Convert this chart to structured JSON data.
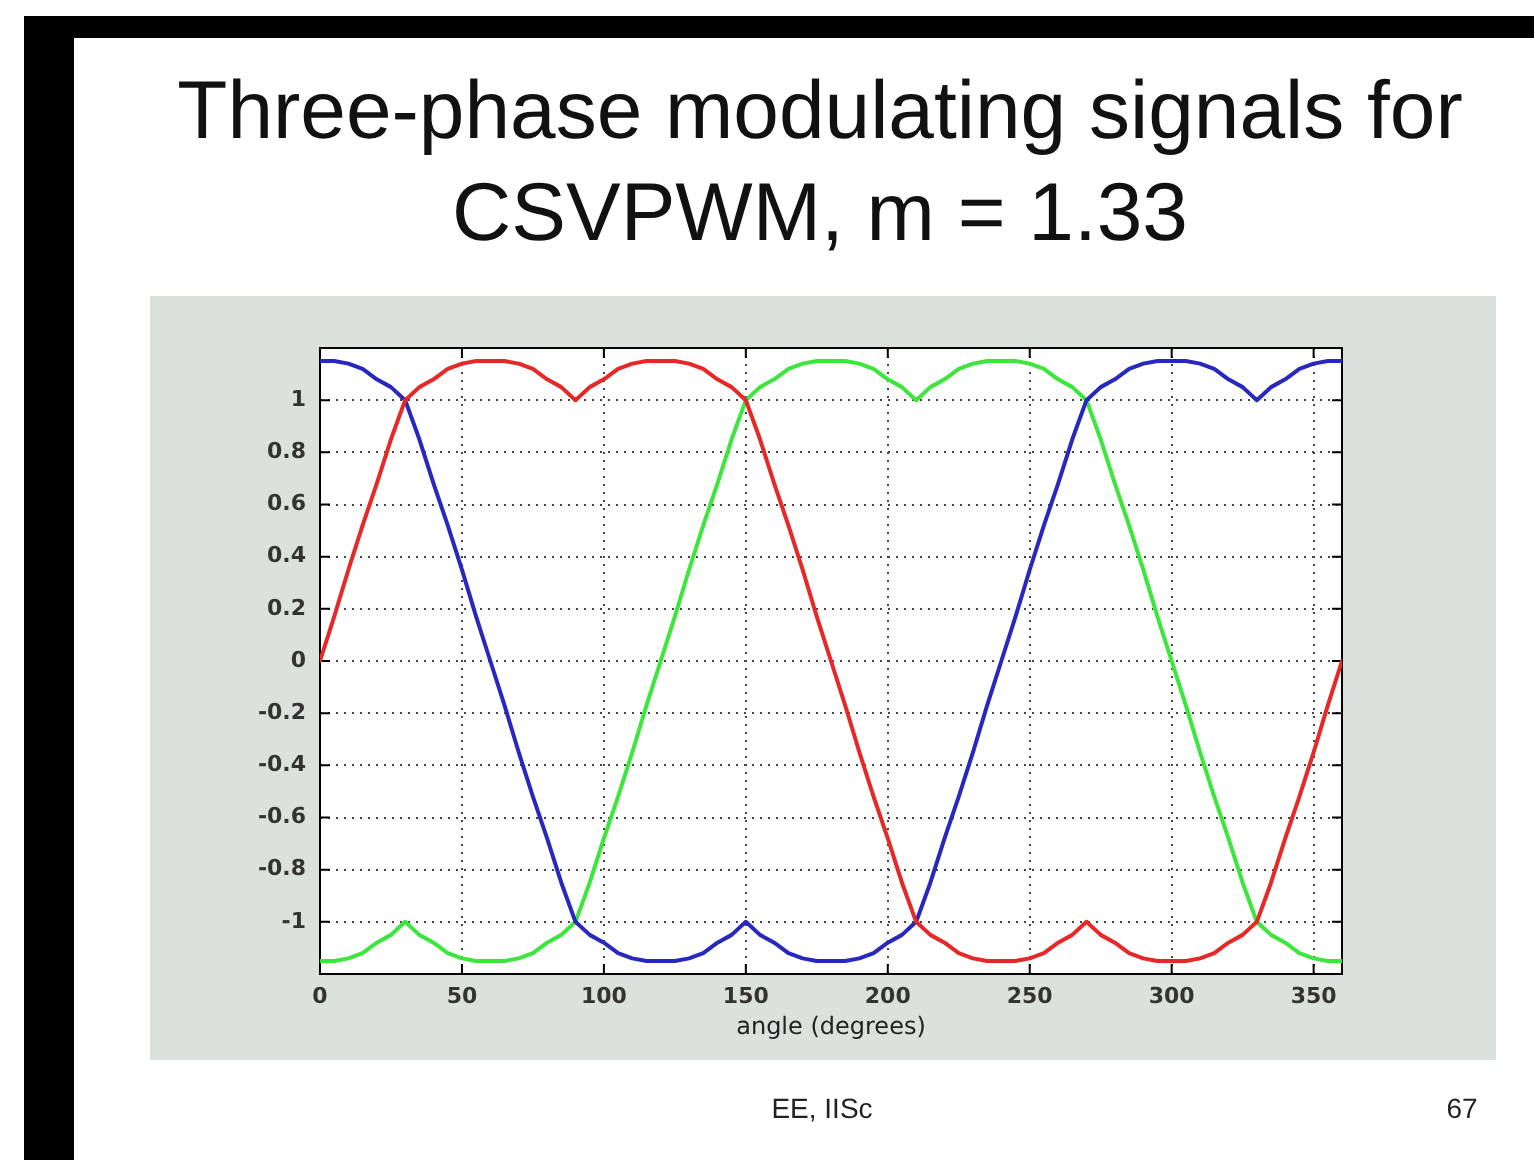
{
  "chart_data": {
    "type": "line",
    "title": "Three-phase modulating signals for CSVPWM, m = 1.33",
    "xlabel": "angle (degrees)",
    "annotations": [
      "EE, IISc",
      "67"
    ],
    "x": [
      0,
      5,
      10,
      15,
      20,
      25,
      30,
      35,
      40,
      45,
      50,
      55,
      60,
      65,
      70,
      75,
      80,
      85,
      90,
      95,
      100,
      105,
      110,
      115,
      120,
      125,
      130,
      135,
      140,
      145,
      150,
      155,
      160,
      165,
      170,
      175,
      180,
      185,
      190,
      195,
      200,
      205,
      210,
      215,
      220,
      225,
      230,
      235,
      240,
      245,
      250,
      255,
      260,
      265,
      270,
      275,
      280,
      285,
      290,
      295,
      300,
      305,
      310,
      315,
      320,
      325,
      330,
      335,
      340,
      345,
      350,
      355,
      360
    ],
    "series": [
      {
        "color": "#e62828",
        "values": [
          0,
          0.17,
          0.35,
          0.52,
          0.68,
          0.85,
          1,
          1.05,
          1.08,
          1.12,
          1.14,
          1.15,
          1.15,
          1.15,
          1.14,
          1.12,
          1.08,
          1.05,
          1,
          1.05,
          1.08,
          1.12,
          1.14,
          1.15,
          1.15,
          1.15,
          1.14,
          1.12,
          1.08,
          1.05,
          1,
          0.85,
          0.68,
          0.52,
          0.35,
          0.17,
          0,
          -0.17,
          -0.35,
          -0.52,
          -0.68,
          -0.85,
          -1,
          -1.05,
          -1.08,
          -1.12,
          -1.14,
          -1.15,
          -1.15,
          -1.15,
          -1.14,
          -1.12,
          -1.08,
          -1.05,
          -1,
          -1.05,
          -1.08,
          -1.12,
          -1.14,
          -1.15,
          -1.15,
          -1.15,
          -1.14,
          -1.12,
          -1.08,
          -1.05,
          -1,
          -0.85,
          -0.68,
          -0.52,
          -0.35,
          -0.17,
          0
        ]
      },
      {
        "color": "#2828be",
        "values": [
          1.15,
          1.15,
          1.14,
          1.12,
          1.08,
          1.05,
          1,
          0.85,
          0.68,
          0.52,
          0.35,
          0.17,
          0,
          -0.17,
          -0.35,
          -0.52,
          -0.68,
          -0.85,
          -1,
          -1.05,
          -1.08,
          -1.12,
          -1.14,
          -1.15,
          -1.15,
          -1.15,
          -1.14,
          -1.12,
          -1.08,
          -1.05,
          -1,
          -1.05,
          -1.08,
          -1.12,
          -1.14,
          -1.15,
          -1.15,
          -1.15,
          -1.14,
          -1.12,
          -1.08,
          -1.05,
          -1,
          -0.85,
          -0.68,
          -0.52,
          -0.35,
          -0.17,
          0,
          0.17,
          0.35,
          0.52,
          0.68,
          0.85,
          1,
          1.05,
          1.08,
          1.12,
          1.14,
          1.15,
          1.15,
          1.15,
          1.14,
          1.12,
          1.08,
          1.05,
          1,
          1.05,
          1.08,
          1.12,
          1.14,
          1.15,
          1.15
        ]
      },
      {
        "color": "#3ce63c",
        "values": [
          -1.15,
          -1.15,
          -1.14,
          -1.12,
          -1.08,
          -1.05,
          -1,
          -1.05,
          -1.08,
          -1.12,
          -1.14,
          -1.15,
          -1.15,
          -1.15,
          -1.14,
          -1.12,
          -1.08,
          -1.05,
          -1,
          -0.85,
          -0.68,
          -0.52,
          -0.35,
          -0.17,
          0,
          0.17,
          0.35,
          0.52,
          0.68,
          0.85,
          1,
          1.05,
          1.08,
          1.12,
          1.14,
          1.15,
          1.15,
          1.15,
          1.14,
          1.12,
          1.08,
          1.05,
          1,
          1.05,
          1.08,
          1.12,
          1.14,
          1.15,
          1.15,
          1.15,
          1.14,
          1.12,
          1.08,
          1.05,
          1,
          0.85,
          0.68,
          0.52,
          0.35,
          0.17,
          0,
          -0.17,
          -0.35,
          -0.52,
          -0.68,
          -0.85,
          -1,
          -1.05,
          -1.08,
          -1.12,
          -1.14,
          -1.15,
          -1.15
        ]
      }
    ],
    "xlim": [
      0,
      360
    ],
    "ylim": [
      -1.2,
      1.2
    ],
    "xticks": [
      0,
      50,
      100,
      150,
      200,
      250,
      300,
      350
    ],
    "yticks": [
      -1,
      -0.8,
      -0.6,
      -0.4,
      -0.2,
      0,
      0.2,
      0.4,
      0.6,
      0.8,
      1
    ],
    "grid": true
  }
}
